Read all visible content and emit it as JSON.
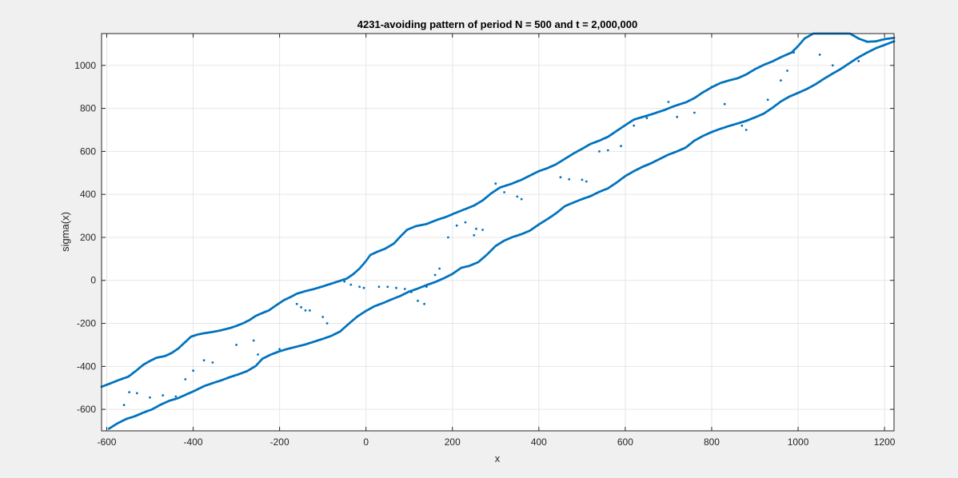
{
  "chart_data": {
    "type": "scatter",
    "title": "4231-avoiding pattern of period N = 500 and t = 2,000,000",
    "xlabel": "x",
    "ylabel": "sigma(x)",
    "xlim": [
      -612,
      1222
    ],
    "ylim": [
      -700,
      1148
    ],
    "xticks": [
      -600,
      -400,
      -200,
      0,
      200,
      400,
      600,
      800,
      1000,
      1200
    ],
    "yticks": [
      -600,
      -400,
      -200,
      0,
      200,
      400,
      600,
      800,
      1000
    ],
    "xtick_labels": [
      "-600",
      "-400",
      "-200",
      "0",
      "200",
      "400",
      "600",
      "800",
      "1000",
      "1200"
    ],
    "ytick_labels": [
      "-600",
      "-400",
      "-200",
      "0",
      "200",
      "400",
      "600",
      "800",
      "1000"
    ],
    "grid": true,
    "marker_color": "#0072bd",
    "series": [
      {
        "points": [
          [
            -612,
            -495
          ],
          [
            -590,
            -478
          ],
          [
            -570,
            -462
          ],
          [
            -550,
            -448
          ],
          [
            -535,
            -425
          ],
          [
            -515,
            -392
          ],
          [
            -500,
            -375
          ],
          [
            -485,
            -360
          ],
          [
            -465,
            -352
          ],
          [
            -450,
            -338
          ],
          [
            -435,
            -318
          ],
          [
            -420,
            -290
          ],
          [
            -405,
            -262
          ],
          [
            -390,
            -252
          ],
          [
            -375,
            -246
          ],
          [
            -355,
            -240
          ],
          [
            -335,
            -232
          ],
          [
            -315,
            -222
          ],
          [
            -300,
            -212
          ],
          [
            -285,
            -200
          ],
          [
            -270,
            -185
          ],
          [
            -255,
            -165
          ],
          [
            -240,
            -152
          ],
          [
            -225,
            -140
          ],
          [
            -205,
            -112
          ],
          [
            -190,
            -92
          ],
          [
            -175,
            -78
          ],
          [
            -160,
            -62
          ],
          [
            -140,
            -50
          ],
          [
            -120,
            -40
          ],
          [
            -100,
            -28
          ],
          [
            -80,
            -15
          ],
          [
            -60,
            -2
          ],
          [
            -45,
            8
          ],
          [
            -30,
            28
          ],
          [
            -15,
            55
          ],
          [
            0,
            90
          ],
          [
            10,
            118
          ],
          [
            25,
            132
          ],
          [
            45,
            148
          ],
          [
            65,
            172
          ],
          [
            80,
            205
          ],
          [
            95,
            235
          ],
          [
            115,
            252
          ],
          [
            140,
            262
          ],
          [
            165,
            282
          ],
          [
            185,
            295
          ],
          [
            205,
            312
          ],
          [
            225,
            328
          ],
          [
            250,
            348
          ],
          [
            270,
            372
          ],
          [
            290,
            405
          ],
          [
            310,
            432
          ],
          [
            335,
            448
          ],
          [
            360,
            468
          ],
          [
            380,
            488
          ],
          [
            400,
            508
          ],
          [
            420,
            522
          ],
          [
            440,
            540
          ],
          [
            460,
            565
          ],
          [
            480,
            590
          ],
          [
            500,
            612
          ],
          [
            520,
            635
          ],
          [
            540,
            650
          ],
          [
            560,
            668
          ],
          [
            580,
            695
          ],
          [
            600,
            722
          ],
          [
            620,
            748
          ],
          [
            640,
            760
          ],
          [
            660,
            772
          ],
          [
            690,
            792
          ],
          [
            715,
            812
          ],
          [
            740,
            828
          ],
          [
            760,
            848
          ],
          [
            780,
            875
          ],
          [
            800,
            898
          ],
          [
            820,
            918
          ],
          [
            840,
            930
          ],
          [
            860,
            940
          ],
          [
            880,
            958
          ],
          [
            900,
            982
          ],
          [
            920,
            1002
          ],
          [
            940,
            1018
          ],
          [
            960,
            1038
          ],
          [
            985,
            1060
          ],
          [
            1000,
            1090
          ],
          [
            1015,
            1125
          ],
          [
            1035,
            1148
          ],
          [
            1070,
            1148
          ],
          [
            1120,
            1148
          ],
          [
            1140,
            1125
          ],
          [
            1160,
            1110
          ],
          [
            1180,
            1112
          ],
          [
            1200,
            1122
          ],
          [
            1222,
            1128
          ]
        ]
      },
      {
        "points": [
          [
            -595,
            -690
          ],
          [
            -575,
            -665
          ],
          [
            -555,
            -645
          ],
          [
            -535,
            -632
          ],
          [
            -515,
            -615
          ],
          [
            -495,
            -600
          ],
          [
            -475,
            -578
          ],
          [
            -455,
            -560
          ],
          [
            -435,
            -548
          ],
          [
            -415,
            -530
          ],
          [
            -395,
            -512
          ],
          [
            -375,
            -492
          ],
          [
            -355,
            -478
          ],
          [
            -335,
            -465
          ],
          [
            -315,
            -450
          ],
          [
            -295,
            -437
          ],
          [
            -275,
            -422
          ],
          [
            -255,
            -398
          ],
          [
            -240,
            -365
          ],
          [
            -220,
            -345
          ],
          [
            -200,
            -330
          ],
          [
            -180,
            -318
          ],
          [
            -160,
            -308
          ],
          [
            -140,
            -298
          ],
          [
            -120,
            -285
          ],
          [
            -100,
            -272
          ],
          [
            -80,
            -258
          ],
          [
            -60,
            -238
          ],
          [
            -40,
            -202
          ],
          [
            -20,
            -168
          ],
          [
            0,
            -142
          ],
          [
            20,
            -120
          ],
          [
            40,
            -105
          ],
          [
            60,
            -88
          ],
          [
            80,
            -72
          ],
          [
            100,
            -52
          ],
          [
            120,
            -38
          ],
          [
            140,
            -22
          ],
          [
            160,
            -8
          ],
          [
            180,
            10
          ],
          [
            200,
            30
          ],
          [
            220,
            58
          ],
          [
            240,
            68
          ],
          [
            260,
            85
          ],
          [
            280,
            120
          ],
          [
            300,
            160
          ],
          [
            320,
            185
          ],
          [
            340,
            202
          ],
          [
            360,
            215
          ],
          [
            380,
            232
          ],
          [
            400,
            260
          ],
          [
            420,
            285
          ],
          [
            440,
            312
          ],
          [
            460,
            345
          ],
          [
            480,
            362
          ],
          [
            500,
            378
          ],
          [
            520,
            392
          ],
          [
            540,
            412
          ],
          [
            560,
            428
          ],
          [
            580,
            455
          ],
          [
            600,
            485
          ],
          [
            620,
            508
          ],
          [
            640,
            528
          ],
          [
            660,
            545
          ],
          [
            680,
            565
          ],
          [
            700,
            585
          ],
          [
            720,
            600
          ],
          [
            740,
            618
          ],
          [
            760,
            650
          ],
          [
            780,
            672
          ],
          [
            800,
            690
          ],
          [
            820,
            705
          ],
          [
            840,
            718
          ],
          [
            860,
            730
          ],
          [
            880,
            742
          ],
          [
            900,
            758
          ],
          [
            920,
            775
          ],
          [
            940,
            802
          ],
          [
            960,
            832
          ],
          [
            980,
            855
          ],
          [
            1000,
            872
          ],
          [
            1020,
            890
          ],
          [
            1040,
            912
          ],
          [
            1060,
            938
          ],
          [
            1080,
            962
          ],
          [
            1100,
            985
          ],
          [
            1120,
            1012
          ],
          [
            1140,
            1038
          ],
          [
            1160,
            1060
          ],
          [
            1180,
            1080
          ],
          [
            1200,
            1095
          ],
          [
            1222,
            1112
          ]
        ]
      },
      {
        "points": [
          [
            -560,
            -580
          ],
          [
            -548,
            -520
          ],
          [
            -530,
            -525
          ],
          [
            -500,
            -545
          ],
          [
            -470,
            -535
          ],
          [
            -440,
            -540
          ],
          [
            -418,
            -460
          ],
          [
            -400,
            -420
          ],
          [
            -375,
            -372
          ],
          [
            -355,
            -382
          ],
          [
            -300,
            -300
          ],
          [
            -260,
            -280
          ],
          [
            -250,
            -345
          ],
          [
            -200,
            -320
          ],
          [
            -160,
            -110
          ],
          [
            -150,
            -125
          ],
          [
            -140,
            -140
          ],
          [
            -130,
            -140
          ],
          [
            -100,
            -170
          ],
          [
            -90,
            -200
          ],
          [
            -70,
            -248
          ],
          [
            -50,
            -5
          ],
          [
            -35,
            -20
          ],
          [
            -15,
            -30
          ],
          [
            -5,
            -35
          ],
          [
            30,
            -30
          ],
          [
            50,
            -30
          ],
          [
            70,
            -35
          ],
          [
            90,
            -40
          ],
          [
            105,
            -55
          ],
          [
            120,
            -95
          ],
          [
            135,
            -110
          ],
          [
            140,
            -30
          ],
          [
            150,
            -15
          ],
          [
            160,
            25
          ],
          [
            170,
            55
          ],
          [
            190,
            200
          ],
          [
            210,
            255
          ],
          [
            230,
            270
          ],
          [
            250,
            210
          ],
          [
            255,
            240
          ],
          [
            270,
            235
          ],
          [
            300,
            450
          ],
          [
            320,
            410
          ],
          [
            350,
            390
          ],
          [
            360,
            378
          ],
          [
            450,
            480
          ],
          [
            470,
            470
          ],
          [
            500,
            468
          ],
          [
            510,
            460
          ],
          [
            540,
            600
          ],
          [
            560,
            605
          ],
          [
            590,
            625
          ],
          [
            620,
            720
          ],
          [
            650,
            755
          ],
          [
            700,
            830
          ],
          [
            720,
            760
          ],
          [
            760,
            780
          ],
          [
            800,
            900
          ],
          [
            830,
            820
          ],
          [
            870,
            720
          ],
          [
            880,
            700
          ],
          [
            930,
            840
          ],
          [
            960,
            930
          ],
          [
            975,
            975
          ],
          [
            990,
            1060
          ],
          [
            1050,
            1050
          ],
          [
            1080,
            1000
          ],
          [
            1100,
            985
          ],
          [
            1140,
            1020
          ]
        ]
      }
    ]
  }
}
